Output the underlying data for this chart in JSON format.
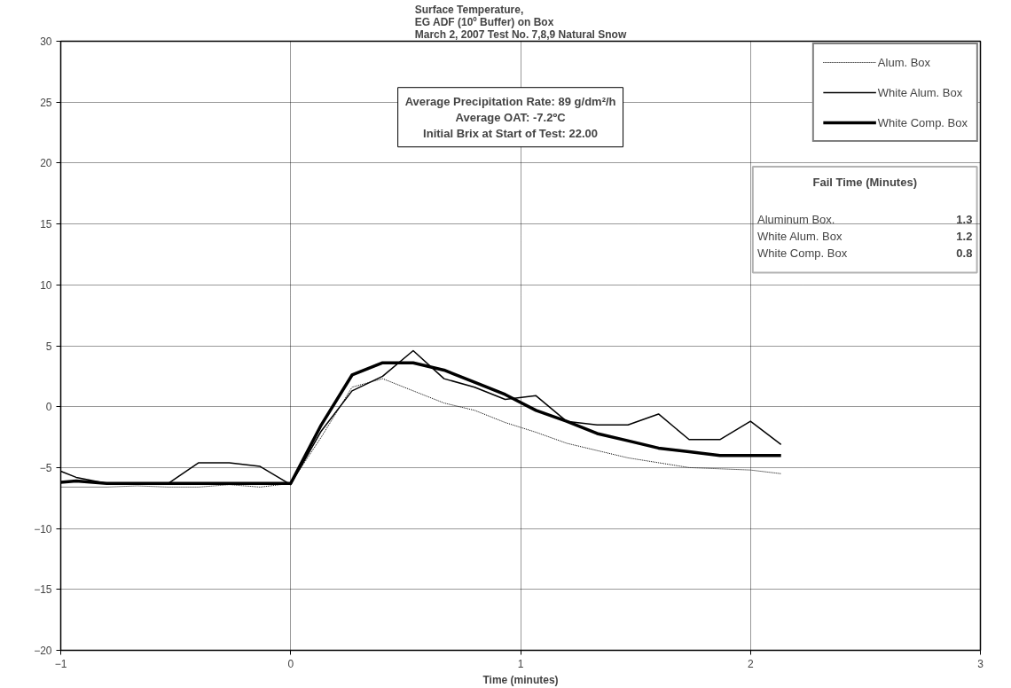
{
  "chart_data": {
    "type": "line",
    "title": "Surface Temperature,\nEG ADF (10º Buffer)  on Box\nMarch 2, 2007 Test No. 7,8,9 Natural Snow",
    "xlabel": "Time (minutes)",
    "x": [
      -1,
      -0.933,
      -0.8,
      -0.667,
      -0.533,
      -0.4,
      -0.267,
      -0.133,
      0,
      0.133,
      0.267,
      0.4,
      0.533,
      0.667,
      0.8,
      0.933,
      1.067,
      1.2,
      1.333,
      1.467,
      1.6,
      1.733,
      1.867,
      2.0,
      2.133
    ],
    "series": [
      {
        "name": "Alum. Box",
        "color": "#000000",
        "line_style": "dotted",
        "values": [
          -6.6,
          -6.6,
          -6.6,
          -6.5,
          -6.6,
          -6.6,
          -6.4,
          -6.6,
          -6.3,
          -2.5,
          1.6,
          2.3,
          1.3,
          0.3,
          -0.3,
          -1.3,
          -2.1,
          -3.0,
          -3.6,
          -4.2,
          -4.6,
          -5.0,
          -5.1,
          -5.2,
          -5.5
        ]
      },
      {
        "name": "White Alum. Box",
        "color": "#000000",
        "line_style": "solid",
        "values": [
          -5.3,
          -5.8,
          -6.3,
          -6.3,
          -6.3,
          -4.6,
          -4.6,
          -4.9,
          -6.4,
          -2.0,
          1.3,
          2.5,
          4.6,
          2.3,
          1.6,
          0.6,
          0.9,
          -1.2,
          -1.5,
          -1.5,
          -0.6,
          -2.7,
          -2.7,
          -1.2,
          -3.1
        ]
      },
      {
        "name": "White Comp. Box",
        "color": "#000000",
        "line_style": "solid",
        "values": [
          -6.2,
          -6.1,
          -6.3,
          -6.3,
          -6.3,
          -6.3,
          -6.3,
          -6.3,
          -6.3,
          -1.5,
          2.6,
          3.6,
          3.6,
          3.0,
          2.0,
          1.0,
          -0.3,
          -1.2,
          -2.2,
          -2.8,
          -3.4,
          -3.7,
          -4.0,
          -4.0,
          -4.0
        ]
      }
    ],
    "xlim": [
      -1,
      3
    ],
    "xticks": [
      -1,
      0,
      1,
      2,
      3
    ],
    "ylim": [
      -20,
      30
    ],
    "yticks": [
      -20,
      -15,
      -10,
      -5,
      0,
      5,
      10,
      15,
      20,
      25,
      30
    ],
    "grid": true,
    "legend": "top right",
    "marker": "none",
    "annotations": [
      "Average Precipitation Rate: 89 g/dm²/h\nAverage OAT: -7.2ºC\nInitial Brix at Start of Test: 22.00",
      "Fail Time (Minutes)",
      "Aluminum Box.",
      "1.3",
      "White Alum. Box",
      "1.2",
      "White Comp. Box",
      "0.8"
    ]
  }
}
